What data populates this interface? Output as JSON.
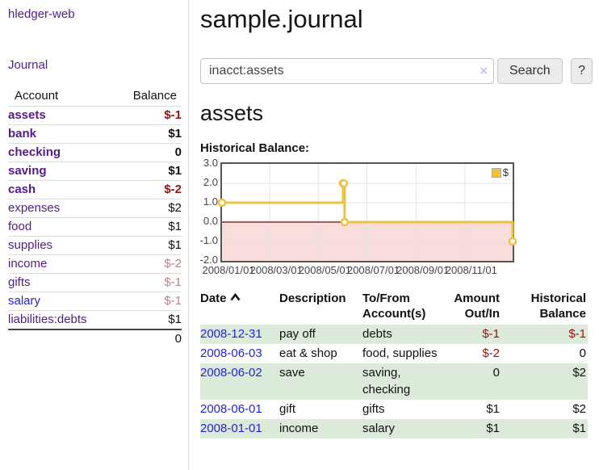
{
  "colors": {
    "link_purple": "#551a8b",
    "link_blue": "#2323dd",
    "negative_strong": "#9c0f0f",
    "negative_dim": "#c28383",
    "row_stripe_green": "#dcead9",
    "chart_line_gold": "#edc240",
    "chart_negative_fill": "#f9dcdc",
    "chart_zero_line": "#8b0000",
    "chart_grid": "#e3e3e3"
  },
  "sidebar": {
    "app_title": "hledger-web",
    "journal_label": "Journal",
    "accounts": {
      "headers": [
        "Account",
        "Balance"
      ],
      "rows": [
        {
          "account": "assets",
          "balance": "$-1",
          "level": 1,
          "bold": true,
          "account_color": "purple",
          "balance_class": "neg-strong"
        },
        {
          "account": "bank",
          "balance": "$1",
          "level": 2,
          "bold": true,
          "account_color": "purple",
          "balance_class": "plain"
        },
        {
          "account": "checking",
          "balance": "0",
          "level": 3,
          "bold": true,
          "account_color": "purple",
          "balance_class": "plain"
        },
        {
          "account": "saving",
          "balance": "$1",
          "level": 3,
          "bold": true,
          "account_color": "purple",
          "balance_class": "plain"
        },
        {
          "account": "cash",
          "balance": "$-2",
          "level": 2,
          "bold": true,
          "account_color": "purple",
          "balance_class": "neg-strong"
        },
        {
          "account": "expenses",
          "balance": "$2",
          "level": 1,
          "bold": false,
          "account_color": "purple",
          "balance_class": "plain"
        },
        {
          "account": "food",
          "balance": "$1",
          "level": 2,
          "bold": false,
          "account_color": "purple",
          "balance_class": "plain"
        },
        {
          "account": "supplies",
          "balance": "$1",
          "level": 2,
          "bold": false,
          "account_color": "purple",
          "balance_class": "plain"
        },
        {
          "account": "income",
          "balance": "$-2",
          "level": 1,
          "bold": false,
          "account_color": "purple",
          "balance_class": "neg-dim"
        },
        {
          "account": "gifts",
          "balance": "$-1",
          "level": 2,
          "bold": false,
          "account_color": "purple",
          "balance_class": "neg-dim"
        },
        {
          "account": "salary",
          "balance": "$-1",
          "level": 2,
          "bold": false,
          "account_color": "blue",
          "balance_class": "neg-dim"
        },
        {
          "account": "liabilities:debts",
          "balance": "$1",
          "level": 1,
          "bold": false,
          "account_color": "purple",
          "balance_class": "plain"
        }
      ],
      "total": "0"
    }
  },
  "main": {
    "title": "sample.journal",
    "search": {
      "value": "inacct:assets",
      "clear_icon": "×",
      "button_label": "Search",
      "help_label": "?"
    },
    "account_heading": "assets"
  },
  "chart_data": {
    "type": "line",
    "title": "Historical Balance:",
    "legend": [
      {
        "name": "$",
        "color": "#edc240"
      }
    ],
    "legend_position": "top-right",
    "grid": true,
    "step": "after",
    "x_range": [
      "2008-01-01",
      "2008-12-31"
    ],
    "ylim": [
      -2,
      3
    ],
    "y_ticks": [
      {
        "v": 3,
        "label": "3.0"
      },
      {
        "v": 2,
        "label": "2.0"
      },
      {
        "v": 1,
        "label": "1.0"
      },
      {
        "v": 0,
        "label": "0.0"
      },
      {
        "v": -1,
        "label": "-1.0"
      },
      {
        "v": -2,
        "label": "-2.0"
      }
    ],
    "x_ticks": [
      {
        "date": "2008-01-01",
        "label": "2008/01/01"
      },
      {
        "date": "2008-03-01",
        "label": "2008/03/01"
      },
      {
        "date": "2008-05-01",
        "label": "2008/05/01"
      },
      {
        "date": "2008-07-01",
        "label": "2008/07/01"
      },
      {
        "date": "2008-09-01",
        "label": "2008/09/01"
      },
      {
        "date": "2008-11-01",
        "label": "2008/11/01"
      }
    ],
    "series": [
      {
        "name": "$",
        "points": [
          {
            "date": "2008-01-01",
            "value": 1
          },
          {
            "date": "2008-06-01",
            "value": 2
          },
          {
            "date": "2008-06-02",
            "value": 2
          },
          {
            "date": "2008-06-03",
            "value": 0
          },
          {
            "date": "2008-12-31",
            "value": -1
          }
        ]
      }
    ]
  },
  "transactions": {
    "headers": [
      {
        "lines": [
          "Date"
        ],
        "align": "left",
        "sort": true
      },
      {
        "lines": [
          "Description"
        ],
        "align": "left",
        "sort": false
      },
      {
        "lines": [
          "To/From",
          "Account(s)"
        ],
        "align": "left",
        "sort": false
      },
      {
        "lines": [
          "Amount",
          "Out/In"
        ],
        "align": "right",
        "sort": false
      },
      {
        "lines": [
          "Historical",
          "Balance"
        ],
        "align": "right",
        "sort": false
      }
    ],
    "rows": [
      {
        "date": "2008-12-31",
        "description": "pay off",
        "accounts": "debts",
        "amount": "$-1",
        "amount_negative": true,
        "balance": "$-1",
        "balance_negative": true
      },
      {
        "date": "2008-06-03",
        "description": "eat & shop",
        "accounts": "food, supplies",
        "amount": "$-2",
        "amount_negative": true,
        "balance": "0",
        "balance_negative": false
      },
      {
        "date": "2008-06-02",
        "description": "save",
        "accounts": "saving, checking",
        "amount": "0",
        "amount_negative": false,
        "balance": "$2",
        "balance_negative": false
      },
      {
        "date": "2008-06-01",
        "description": "gift",
        "accounts": "gifts",
        "amount": "$1",
        "amount_negative": false,
        "balance": "$2",
        "balance_negative": false
      },
      {
        "date": "2008-01-01",
        "description": "income",
        "accounts": "salary",
        "amount": "$1",
        "amount_negative": false,
        "balance": "$1",
        "balance_negative": false
      }
    ]
  }
}
